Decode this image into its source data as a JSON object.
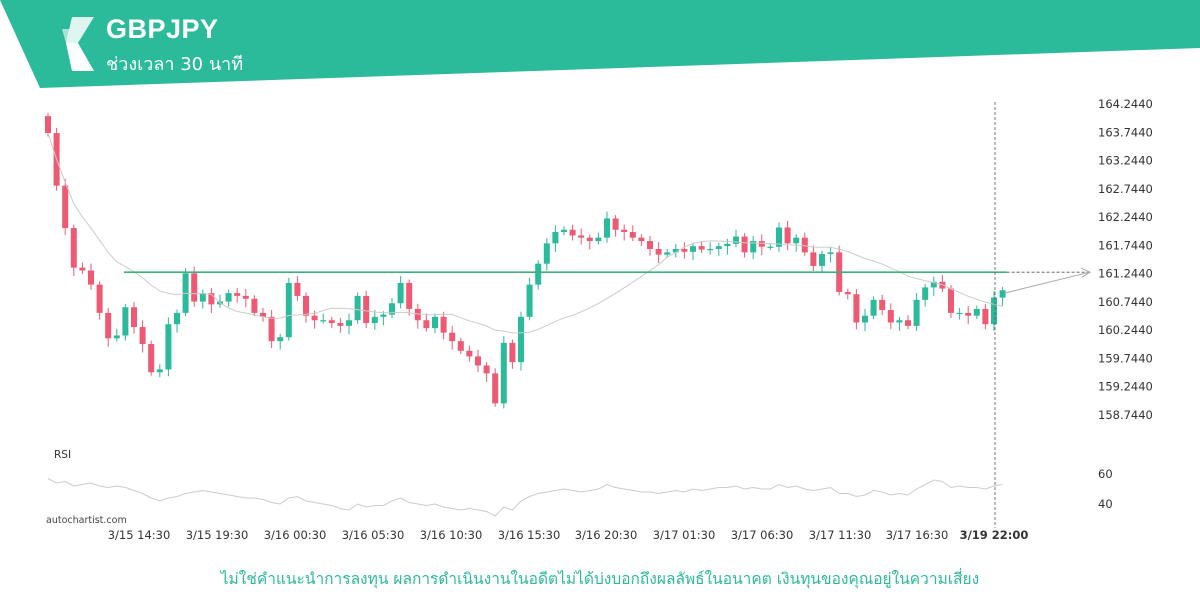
{
  "header": {
    "symbol": "GBPJPY",
    "timeframe": "ช่วงเวลา 30 นาที",
    "brand_color": "#2bba9a",
    "logo_icon": "autochartist-s-logo-icon"
  },
  "footer": {
    "watermark": "autochartist.com",
    "disclaimer": "ไม่ใช่คำแนะนำการลงทุน ผลการดำเนินงานในอดีตไม่ได้บ่งบอกถึงผลลัพธ์ในอนาคต เงินทุนของคุณอยู่ในความเสี่ยง",
    "disclaimer_color": "#2bba9a"
  },
  "chart_data": {
    "type": "candlestick",
    "title": "GBPJPY",
    "y_axis": {
      "position": "right",
      "ticks": [
        "164.2440",
        "163.7440",
        "163.2440",
        "162.7440",
        "162.2440",
        "161.7440",
        "161.2440",
        "160.7440",
        "160.2440",
        "159.7440",
        "159.2440",
        "158.7440"
      ],
      "range": [
        158.6,
        164.35
      ]
    },
    "x_axis": {
      "ticks": [
        "3/15 14:30",
        "3/15 19:30",
        "3/16 00:30",
        "3/16 05:30",
        "3/16 10:30",
        "3/16 15:30",
        "3/16 20:30",
        "3/17 01:30",
        "3/17 06:30",
        "3/17 11:30",
        "3/17 16:30",
        "3/19 22:00"
      ],
      "last_tick_bold": true
    },
    "colors": {
      "up": "#2bba9a",
      "down": "#ee5a73",
      "level": "#3cb27a",
      "ma": "#cccccc",
      "rsi": "#cccccc"
    },
    "level_line": {
      "value": 161.27,
      "color": "#3cb27a"
    },
    "forecast_arrow": {
      "from": 160.9,
      "to": 161.27
    },
    "close": [
      163.73,
      162.8,
      162.05,
      161.35,
      161.3,
      161.05,
      160.55,
      160.1,
      160.15,
      160.65,
      160.3,
      160.0,
      159.5,
      159.55,
      160.35,
      160.55,
      161.25,
      160.75,
      160.9,
      160.7,
      160.75,
      160.9,
      160.85,
      160.8,
      160.55,
      160.48,
      160.05,
      160.12,
      161.08,
      160.85,
      160.5,
      160.42,
      160.42,
      160.37,
      160.32,
      160.42,
      160.85,
      160.37,
      160.48,
      160.52,
      160.72,
      161.08,
      160.62,
      160.42,
      160.28,
      160.48,
      160.2,
      160.05,
      159.88,
      159.78,
      159.62,
      159.48,
      158.95,
      160.02,
      159.68,
      160.48,
      161.05,
      161.42,
      161.78,
      161.98,
      162.02,
      161.92,
      161.88,
      161.82,
      161.88,
      162.22,
      162.02,
      161.98,
      161.88,
      161.82,
      161.68,
      161.58,
      161.62,
      161.68,
      161.63,
      161.73,
      161.67,
      161.68,
      161.73,
      161.77,
      161.9,
      161.62,
      161.82,
      161.72,
      161.72,
      162.06,
      161.78,
      161.88,
      161.62,
      161.38,
      161.59,
      161.62,
      160.92,
      160.88,
      160.38,
      160.5,
      160.78,
      160.6,
      160.38,
      160.42,
      160.32,
      160.78,
      161.0,
      161.1,
      160.98,
      160.55,
      160.55,
      160.5,
      160.62,
      160.35,
      160.82,
      160.95
    ],
    "rsi": {
      "label": "RSI",
      "ticks": [
        "60",
        "40"
      ],
      "range": [
        30,
        70
      ],
      "values": [
        57,
        54,
        55,
        52,
        53,
        54,
        52,
        51,
        52,
        51,
        49,
        47,
        44,
        42,
        44,
        45,
        47,
        48,
        49,
        48,
        47,
        46,
        45,
        44,
        44,
        43,
        41,
        40,
        44,
        45,
        42,
        41,
        40,
        39,
        37,
        36,
        40,
        38,
        39,
        39,
        42,
        44,
        41,
        40,
        39,
        40,
        38,
        37,
        36,
        37,
        36,
        35,
        32,
        38,
        36,
        42,
        45,
        47,
        48,
        49,
        50,
        49,
        48,
        49,
        50,
        53,
        51,
        50,
        49,
        48,
        48,
        47,
        48,
        49,
        48,
        50,
        49,
        50,
        51,
        51,
        52,
        50,
        51,
        50,
        50,
        53,
        51,
        52,
        50,
        49,
        50,
        51,
        47,
        47,
        45,
        46,
        49,
        48,
        46,
        47,
        46,
        50,
        53,
        56,
        55,
        51,
        52,
        51,
        51,
        50,
        52,
        53
      ]
    }
  }
}
